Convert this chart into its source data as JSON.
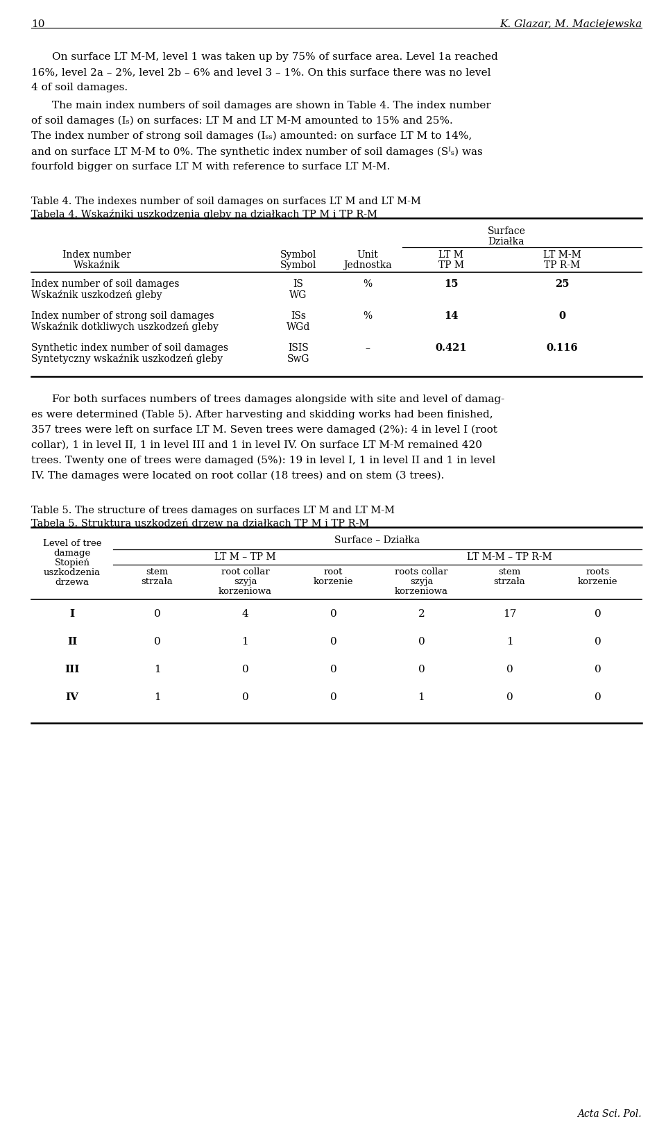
{
  "page_number": "10",
  "header_right": "K. Glazar, M. Maciejewska",
  "footer_right": "Acta Sci. Pol.",
  "table4_caption_en": "Table 4. The indexes number of soil damages on surfaces LT M and LT M-M",
  "table4_caption_pl": "Tabela 4. Wskaźniki uszkodzenia gleby na działkach TP M i TP R-M",
  "table4_rows": [
    {
      "name_en": "Index number of soil damages",
      "name_pl": "Wskaźnik uszkodzeń gleby",
      "symbol_line1": "I",
      "symbol_sub1": "S",
      "symbol_line2": "W",
      "symbol_sub2": "G",
      "unit": "%",
      "ltm": "15",
      "ltmm": "25"
    },
    {
      "name_en": "Index number of strong soil damages",
      "name_pl": "Wskaźnik dotkliwych uszkodzeń gleby",
      "symbol_line1": "I",
      "symbol_sub1": "Ss",
      "symbol_line2": "W",
      "symbol_sub2": "Gd",
      "unit": "%",
      "ltm": "14",
      "ltmm": "0"
    },
    {
      "name_en": "Synthetic index number of soil damages",
      "name_pl": "Syntetyczny wskaźnik uszkodzeń gleby",
      "symbol_line1": "I",
      "symbol_sub1": "SIS",
      "symbol_line2": "Sw",
      "symbol_sub2": "G",
      "unit": "–",
      "ltm": "0.421",
      "ltmm": "0.116"
    }
  ],
  "table5_caption_en": "Table 5. The structure of trees damages on surfaces LT M and LT M-M",
  "table5_caption_pl": "Tabela 5. Struktura uszkodzeń drzew na działkach TP M i TP R-M",
  "table5_data": [
    [
      "I",
      "0",
      "4",
      "0",
      "2",
      "17",
      "0"
    ],
    [
      "II",
      "0",
      "1",
      "0",
      "0",
      "1",
      "0"
    ],
    [
      "III",
      "1",
      "0",
      "0",
      "0",
      "0",
      "0"
    ],
    [
      "IV",
      "1",
      "0",
      "0",
      "1",
      "0",
      "0"
    ]
  ]
}
